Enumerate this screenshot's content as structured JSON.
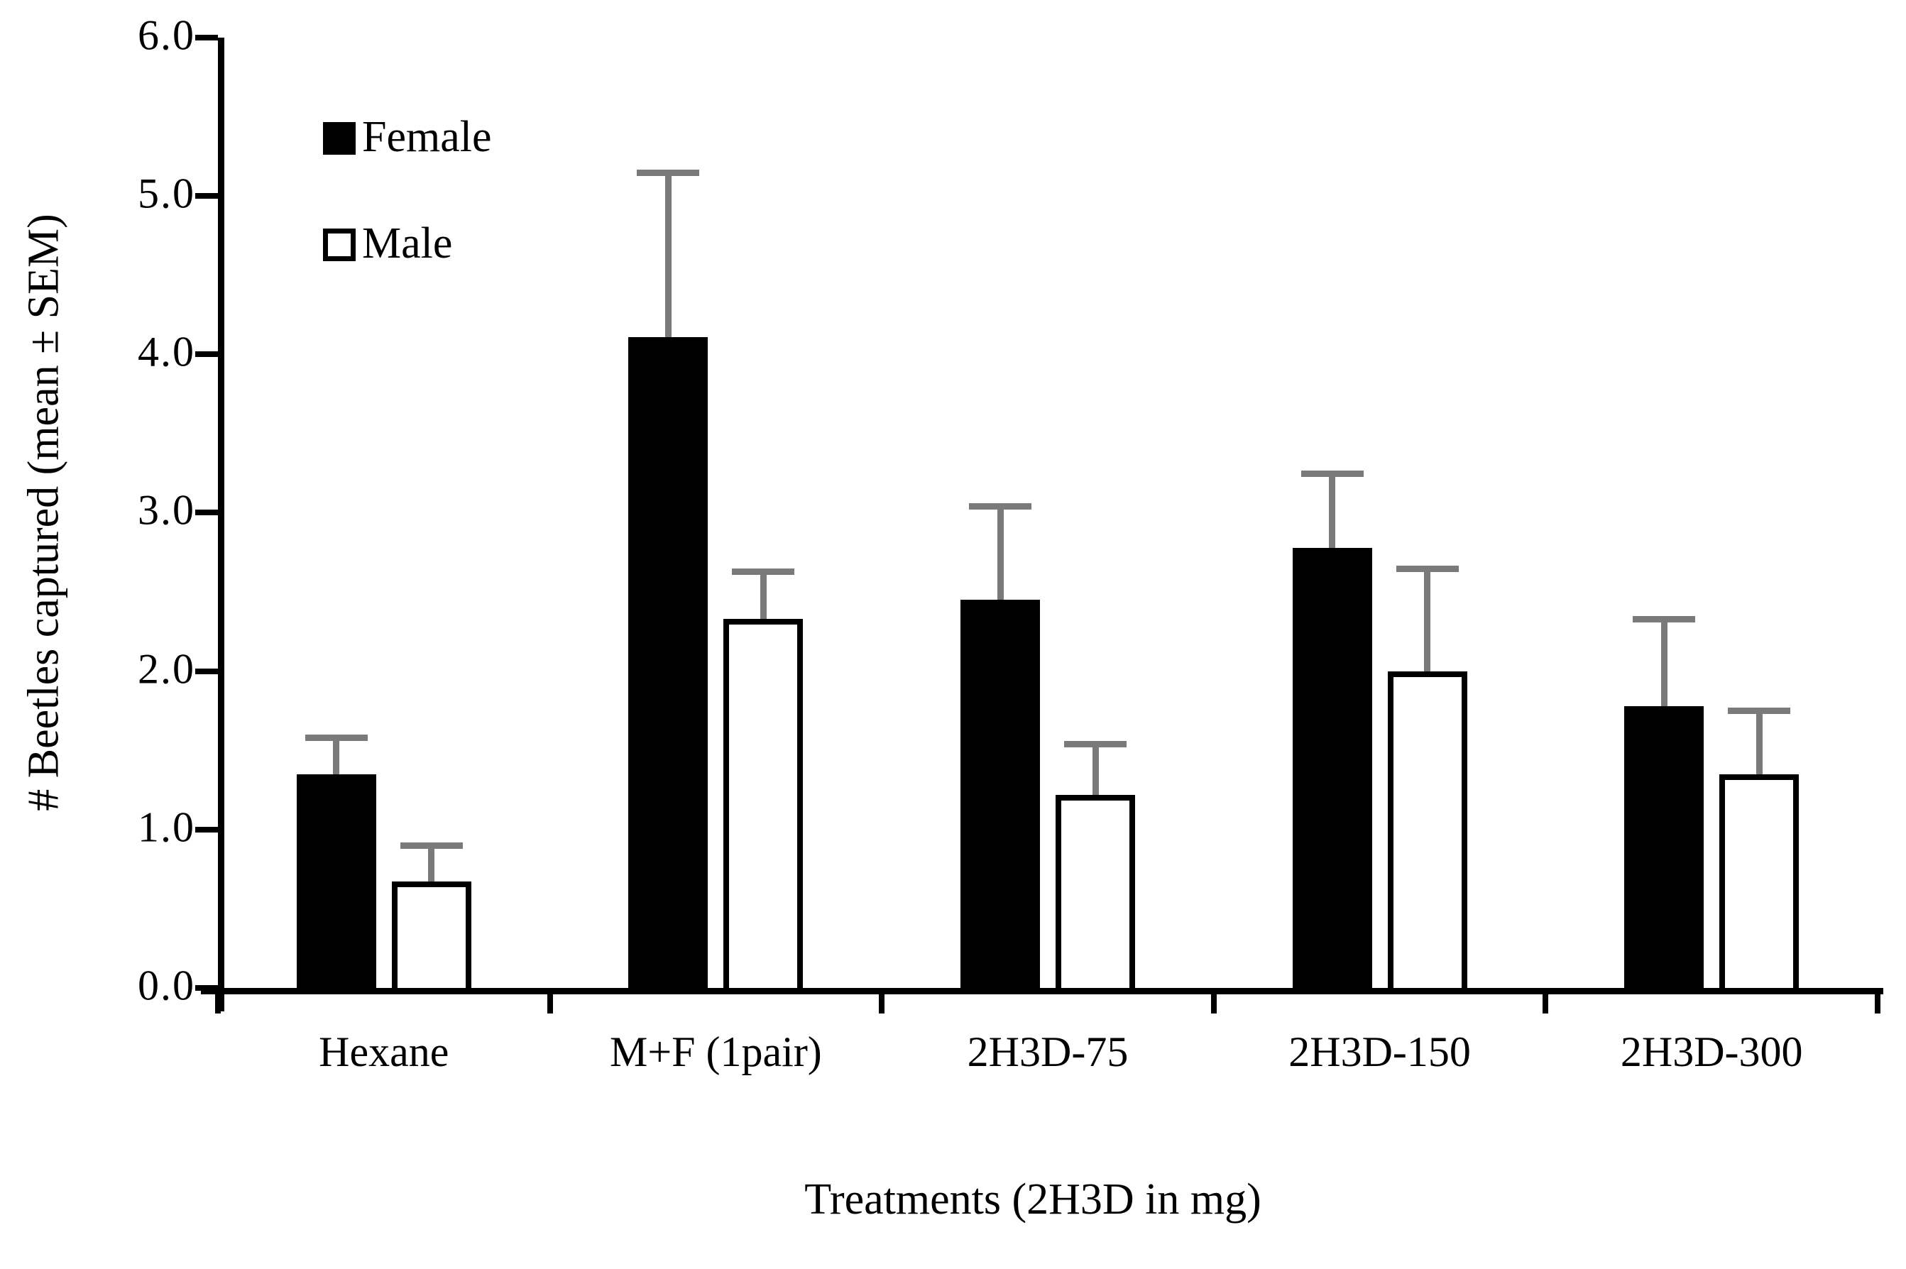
{
  "chart_data": {
    "type": "bar",
    "title": "",
    "xlabel": "Treatments (2H3D in mg)",
    "ylabel": "# Beetles captured (mean ± SEM)",
    "categories": [
      "Hexane",
      "M+F (1pair)",
      "2H3D-75",
      "2H3D-150",
      "2H3D-300"
    ],
    "series": [
      {
        "name": "Female",
        "fill": "#000000",
        "border": "#000000",
        "values": [
          1.35,
          4.11,
          2.45,
          2.78,
          1.78
        ],
        "sem": [
          0.23,
          1.04,
          0.59,
          0.47,
          0.55
        ]
      },
      {
        "name": "Male",
        "fill": "#ffffff",
        "border": "#000000",
        "values": [
          0.67,
          2.33,
          1.22,
          2.0,
          1.35
        ],
        "sem": [
          0.23,
          0.3,
          0.32,
          0.65,
          0.4
        ]
      }
    ],
    "y_ticks": [
      "0.0",
      "1.0",
      "2.0",
      "3.0",
      "4.0",
      "5.0",
      "6.0"
    ],
    "ylim": [
      0,
      6
    ],
    "grid": false,
    "legend_position": "inside-top-left",
    "error_bars": "upper-only",
    "colors": {
      "axis": "#000000",
      "error_bar": "#7a7a7a",
      "female_bar": "#000000",
      "male_bar_fill": "#ffffff",
      "male_bar_border": "#000000",
      "background": "#ffffff"
    }
  }
}
